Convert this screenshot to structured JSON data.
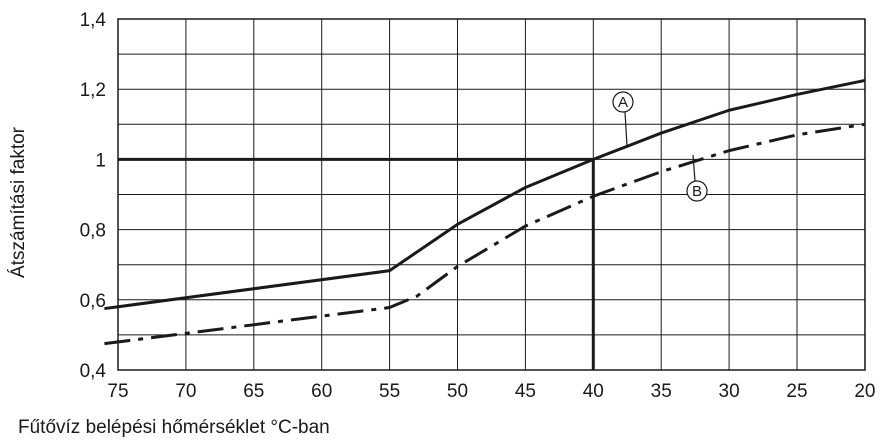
{
  "chart_data": {
    "type": "line",
    "xlabel": "Fűtővíz belépési hőmérséklet °C-ban",
    "ylabel": "Átszámítási faktor",
    "x_ticks": [
      "75",
      "70",
      "65",
      "60",
      "55",
      "50",
      "45",
      "40",
      "35",
      "30",
      "25",
      "20"
    ],
    "y_ticks": [
      "0,4",
      "0,6",
      "0,8",
      "1",
      "1,2",
      "1,4"
    ],
    "xlim": [
      75,
      20
    ],
    "ylim": [
      0.4,
      1.4
    ],
    "x_reversed": true,
    "grid": true,
    "series": [
      {
        "name": "A",
        "style": "solid",
        "x": [
          76,
          55,
          50,
          45,
          40,
          35,
          30,
          25,
          20
        ],
        "y": [
          0.575,
          0.683,
          0.815,
          0.92,
          1.0,
          1.075,
          1.14,
          1.185,
          1.225
        ]
      },
      {
        "name": "B",
        "style": "dash-dot",
        "x": [
          76,
          55,
          53,
          50,
          45,
          40,
          35,
          30,
          25,
          20
        ],
        "y": [
          0.475,
          0.578,
          0.61,
          0.695,
          0.81,
          0.895,
          0.965,
          1.025,
          1.07,
          1.1
        ]
      }
    ],
    "reference_lines": [
      {
        "type": "horizontal",
        "y": 1.0,
        "x_from": 76,
        "x_to": 40
      },
      {
        "type": "vertical",
        "x": 40,
        "y_from": 0.4,
        "y_to": 1.0
      }
    ],
    "colors": {
      "line": "#1a1a1a",
      "grid": "#1a1a1a",
      "background": "#ffffff"
    }
  }
}
